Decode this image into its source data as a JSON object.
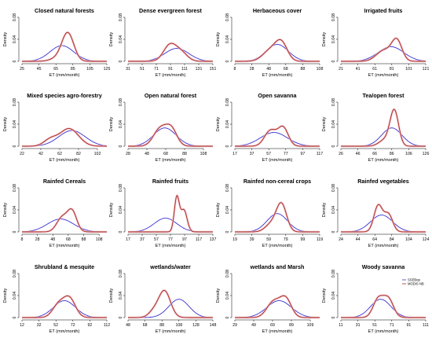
{
  "figure": {
    "ylabel": "Density",
    "xlabel": "ET (mm/month)",
    "y_ticks": [
      0,
      0.04,
      0.08
    ],
    "legend": {
      "panel_index": 15,
      "entries": [
        {
          "name": "SSEBop",
          "color": "#3a2fd0"
        },
        {
          "name": "MODIS NB",
          "color": "#a32a1a"
        }
      ]
    },
    "colors": {
      "ssebop": "#3a2fd0",
      "modis": "#a32a1a",
      "band": "#f2b9c8"
    }
  },
  "chart_data": [
    {
      "type": "line",
      "title": "Closed natural forests",
      "x_ticks": [
        25,
        45,
        65,
        85,
        105,
        125
      ],
      "xlim": [
        25,
        125
      ],
      "ylim": [
        0,
        0.08
      ],
      "series": [
        {
          "name": "SSEBop",
          "components": [
            {
              "mu": 72,
              "sd": 14,
              "w": 1
            }
          ]
        },
        {
          "name": "MODIS NB",
          "components": [
            {
              "mu": 79,
              "sd": 7,
              "w": 0.9
            },
            {
              "mu": 66,
              "sd": 8,
              "w": 0.1
            }
          ]
        }
      ]
    },
    {
      "type": "line",
      "title": "Dense evergreen forest",
      "x_ticks": [
        31,
        51,
        71,
        91,
        111,
        131,
        151
      ],
      "xlim": [
        31,
        151
      ],
      "ylim": [
        0,
        0.08
      ],
      "series": [
        {
          "name": "SSEBop",
          "components": [
            {
              "mu": 100,
              "sd": 17,
              "w": 1
            }
          ]
        },
        {
          "name": "MODIS NB",
          "components": [
            {
              "mu": 90,
              "sd": 9,
              "w": 0.65
            },
            {
              "mu": 106,
              "sd": 9,
              "w": 0.35
            }
          ]
        }
      ]
    },
    {
      "type": "line",
      "title": "Herbaceous cover",
      "x_ticks": [
        8,
        28,
        48,
        68,
        88,
        108
      ],
      "xlim": [
        8,
        108
      ],
      "ylim": [
        0,
        0.08
      ],
      "series": [
        {
          "name": "SSEBop",
          "components": [
            {
              "mu": 58,
              "sd": 13,
              "w": 1
            }
          ]
        },
        {
          "name": "MODIS NB",
          "components": [
            {
              "mu": 63,
              "sd": 7,
              "w": 0.55
            },
            {
              "mu": 50,
              "sd": 9,
              "w": 0.45
            }
          ]
        }
      ]
    },
    {
      "type": "line",
      "title": "Irrigated fruits",
      "x_ticks": [
        21,
        41,
        61,
        81,
        101,
        121
      ],
      "xlim": [
        21,
        121
      ],
      "ylim": [
        0,
        0.08
      ],
      "series": [
        {
          "name": "SSEBop",
          "components": [
            {
              "mu": 80,
              "sd": 15,
              "w": 1
            }
          ]
        },
        {
          "name": "MODIS NB",
          "components": [
            {
              "mu": 87,
              "sd": 6,
              "w": 0.55
            },
            {
              "mu": 72,
              "sd": 9,
              "w": 0.45
            }
          ]
        }
      ]
    },
    {
      "type": "line",
      "title": "Mixed species agro-forestry",
      "x_ticks": [
        22,
        42,
        62,
        82,
        102
      ],
      "xlim": [
        22,
        112
      ],
      "ylim": [
        0,
        0.08
      ],
      "series": [
        {
          "name": "SSEBop",
          "components": [
            {
              "mu": 75,
              "sd": 14,
              "w": 1
            }
          ]
        },
        {
          "name": "MODIS NB",
          "components": [
            {
              "mu": 72,
              "sd": 10,
              "w": 0.8
            },
            {
              "mu": 52,
              "sd": 7,
              "w": 0.2
            }
          ]
        }
      ]
    },
    {
      "type": "line",
      "title": "Open natural forest",
      "x_ticks": [
        28,
        48,
        68,
        88,
        108
      ],
      "xlim": [
        28,
        118
      ],
      "ylim": [
        0,
        0.08
      ],
      "series": [
        {
          "name": "SSEBop",
          "components": [
            {
              "mu": 67,
              "sd": 12,
              "w": 1
            }
          ]
        },
        {
          "name": "MODIS NB",
          "components": [
            {
              "mu": 62,
              "sd": 7,
              "w": 0.55
            },
            {
              "mu": 74,
              "sd": 6,
              "w": 0.45
            }
          ]
        }
      ]
    },
    {
      "type": "line",
      "title": "Open savanna",
      "x_ticks": [
        17,
        37,
        57,
        77,
        97,
        117
      ],
      "xlim": [
        17,
        117
      ],
      "ylim": [
        0,
        0.08
      ],
      "series": [
        {
          "name": "SSEBop",
          "components": [
            {
              "mu": 63,
              "sd": 16,
              "w": 1
            }
          ]
        },
        {
          "name": "MODIS NB",
          "components": [
            {
              "mu": 59,
              "sd": 7,
              "w": 0.5
            },
            {
              "mu": 74,
              "sd": 6,
              "w": 0.5
            }
          ]
        }
      ]
    },
    {
      "type": "line",
      "title": "Tea/open forest",
      "x_ticks": [
        26,
        46,
        66,
        86,
        106,
        126
      ],
      "xlim": [
        26,
        126
      ],
      "ylim": [
        0,
        0.08
      ],
      "series": [
        {
          "name": "SSEBop",
          "components": [
            {
              "mu": 86,
              "sd": 12,
              "w": 1
            }
          ]
        },
        {
          "name": "MODIS NB",
          "components": [
            {
              "mu": 89,
              "sd": 5,
              "w": 0.8
            },
            {
              "mu": 78,
              "sd": 7,
              "w": 0.2
            }
          ]
        }
      ]
    },
    {
      "type": "line",
      "title": "Rainfed Cereals",
      "x_ticks": [
        8,
        28,
        48,
        68,
        88,
        108
      ],
      "xlim": [
        8,
        118
      ],
      "ylim": [
        0,
        0.08
      ],
      "series": [
        {
          "name": "SSEBop",
          "components": [
            {
              "mu": 58,
              "sd": 17,
              "w": 1
            }
          ]
        },
        {
          "name": "MODIS NB",
          "components": [
            {
              "mu": 73,
              "sd": 6,
              "w": 0.55
            },
            {
              "mu": 60,
              "sd": 7,
              "w": 0.45
            }
          ]
        }
      ]
    },
    {
      "type": "line",
      "title": "Rainfed fruits",
      "x_ticks": [
        17,
        37,
        57,
        77,
        97,
        117,
        137
      ],
      "xlim": [
        17,
        137
      ],
      "ylim": [
        0,
        0.08
      ],
      "series": [
        {
          "name": "SSEBop",
          "components": [
            {
              "mu": 70,
              "sd": 16,
              "w": 1
            }
          ]
        },
        {
          "name": "MODIS NB",
          "components": [
            {
              "mu": 86,
              "sd": 3.5,
              "w": 0.55
            },
            {
              "mu": 96,
              "sd": 4.5,
              "w": 0.45
            }
          ]
        }
      ]
    },
    {
      "type": "line",
      "title": "Rainfed non-cereal crops",
      "x_ticks": [
        19,
        39,
        59,
        79,
        99,
        119
      ],
      "xlim": [
        19,
        119
      ],
      "ylim": [
        0,
        0.08
      ],
      "series": [
        {
          "name": "SSEBop",
          "components": [
            {
              "mu": 69,
              "sd": 12,
              "w": 1
            }
          ]
        },
        {
          "name": "MODIS NB",
          "components": [
            {
              "mu": 74,
              "sd": 6,
              "w": 0.75
            },
            {
              "mu": 62,
              "sd": 7,
              "w": 0.25
            }
          ]
        }
      ]
    },
    {
      "type": "line",
      "title": "Rainfed vegetables",
      "x_ticks": [
        24,
        44,
        64,
        84,
        104,
        124
      ],
      "xlim": [
        24,
        124
      ],
      "ylim": [
        0,
        0.08
      ],
      "series": [
        {
          "name": "SSEBop",
          "components": [
            {
              "mu": 72,
              "sd": 13,
              "w": 1
            }
          ]
        },
        {
          "name": "MODIS NB",
          "components": [
            {
              "mu": 68,
              "sd": 5,
              "w": 0.6
            },
            {
              "mu": 80,
              "sd": 5,
              "w": 0.4
            }
          ]
        }
      ]
    },
    {
      "type": "line",
      "title": "Shrubland & mesquite",
      "x_ticks": [
        12,
        32,
        52,
        72,
        92,
        112
      ],
      "xlim": [
        12,
        112
      ],
      "ylim": [
        0,
        0.08
      ],
      "series": [
        {
          "name": "SSEBop",
          "components": [
            {
              "mu": 62,
              "sd": 13,
              "w": 1
            }
          ]
        },
        {
          "name": "MODIS NB",
          "components": [
            {
              "mu": 68,
              "sd": 7,
              "w": 0.6
            },
            {
              "mu": 55,
              "sd": 7,
              "w": 0.4
            }
          ]
        }
      ]
    },
    {
      "type": "line",
      "title": "wetlands/water",
      "x_ticks": [
        48,
        68,
        88,
        108,
        128,
        148
      ],
      "xlim": [
        48,
        148
      ],
      "ylim": [
        0,
        0.08
      ],
      "series": [
        {
          "name": "SSEBop",
          "components": [
            {
              "mu": 108,
              "sd": 12,
              "w": 1
            }
          ]
        },
        {
          "name": "MODIS NB",
          "components": [
            {
              "mu": 91,
              "sd": 7,
              "w": 0.85
            },
            {
              "mu": 78,
              "sd": 6,
              "w": 0.15
            }
          ]
        }
      ]
    },
    {
      "type": "line",
      "title": "wetlands and Marsh",
      "x_ticks": [
        29,
        49,
        69,
        89,
        109
      ],
      "xlim": [
        29,
        119
      ],
      "ylim": [
        0,
        0.08
      ],
      "series": [
        {
          "name": "SSEBop",
          "components": [
            {
              "mu": 76,
              "sd": 13,
              "w": 1
            }
          ]
        },
        {
          "name": "MODIS NB",
          "components": [
            {
              "mu": 70,
              "sd": 7,
              "w": 0.5
            },
            {
              "mu": 83,
              "sd": 6,
              "w": 0.5
            }
          ]
        }
      ]
    },
    {
      "type": "line",
      "title": "Woody savanna",
      "x_ticks": [
        11,
        31,
        51,
        71,
        91,
        111
      ],
      "xlim": [
        11,
        111
      ],
      "ylim": [
        0,
        0.08
      ],
      "series": [
        {
          "name": "SSEBop",
          "components": [
            {
              "mu": 58,
              "sd": 12,
              "w": 1
            }
          ]
        },
        {
          "name": "MODIS NB",
          "components": [
            {
              "mu": 55,
              "sd": 6,
              "w": 0.5
            },
            {
              "mu": 67,
              "sd": 6,
              "w": 0.5
            }
          ]
        }
      ]
    }
  ]
}
